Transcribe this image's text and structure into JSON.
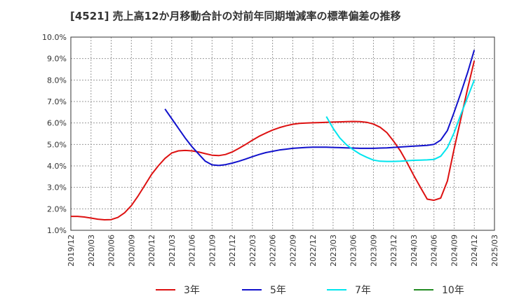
{
  "chart_data": {
    "type": "line",
    "title": "[4521]  売上高12か月移動合計の対前年同期増減率の標準偏差の推移",
    "xlabel": "",
    "ylabel": "",
    "ylim": [
      1.0,
      10.0
    ],
    "y_ticks": [
      "1.0%",
      "2.0%",
      "3.0%",
      "4.0%",
      "5.0%",
      "6.0%",
      "7.0%",
      "8.0%",
      "9.0%",
      "10.0%"
    ],
    "x_ticks": [
      "2019/12",
      "2020/03",
      "2020/06",
      "2020/09",
      "2020/12",
      "2021/03",
      "2021/06",
      "2021/09",
      "2021/12",
      "2022/03",
      "2022/06",
      "2022/09",
      "2022/12",
      "2023/03",
      "2023/06",
      "2023/09",
      "2023/12",
      "2024/03",
      "2024/06",
      "2024/09",
      "2024/12",
      "2025/03"
    ],
    "grid": true,
    "legend_position": "bottom",
    "series": [
      {
        "name": "3年",
        "color": "#dd1111",
        "points": [
          [
            "2019-12",
            1.65
          ],
          [
            "2020-01",
            1.65
          ],
          [
            "2020-02",
            1.62
          ],
          [
            "2020-03",
            1.57
          ],
          [
            "2020-04",
            1.52
          ],
          [
            "2020-05",
            1.49
          ],
          [
            "2020-06",
            1.5
          ],
          [
            "2020-07",
            1.6
          ],
          [
            "2020-08",
            1.82
          ],
          [
            "2020-09",
            2.15
          ],
          [
            "2020-10",
            2.6
          ],
          [
            "2020-11",
            3.1
          ],
          [
            "2020-12",
            3.6
          ],
          [
            "2021-01",
            4.0
          ],
          [
            "2021-02",
            4.35
          ],
          [
            "2021-03",
            4.6
          ],
          [
            "2021-04",
            4.7
          ],
          [
            "2021-05",
            4.72
          ],
          [
            "2021-06",
            4.7
          ],
          [
            "2021-07",
            4.65
          ],
          [
            "2021-08",
            4.57
          ],
          [
            "2021-09",
            4.5
          ],
          [
            "2021-10",
            4.48
          ],
          [
            "2021-11",
            4.53
          ],
          [
            "2021-12",
            4.65
          ],
          [
            "2022-01",
            4.82
          ],
          [
            "2022-02",
            5.0
          ],
          [
            "2022-03",
            5.2
          ],
          [
            "2022-04",
            5.38
          ],
          [
            "2022-05",
            5.53
          ],
          [
            "2022-06",
            5.67
          ],
          [
            "2022-07",
            5.78
          ],
          [
            "2022-08",
            5.87
          ],
          [
            "2022-09",
            5.94
          ],
          [
            "2022-10",
            5.98
          ],
          [
            "2022-11",
            6.0
          ],
          [
            "2022-12",
            6.01
          ],
          [
            "2023-01",
            6.02
          ],
          [
            "2023-02",
            6.03
          ],
          [
            "2023-03",
            6.04
          ],
          [
            "2023-04",
            6.05
          ],
          [
            "2023-05",
            6.06
          ],
          [
            "2023-06",
            6.07
          ],
          [
            "2023-07",
            6.06
          ],
          [
            "2023-08",
            6.03
          ],
          [
            "2023-09",
            5.95
          ],
          [
            "2023-10",
            5.8
          ],
          [
            "2023-11",
            5.55
          ],
          [
            "2023-12",
            5.15
          ],
          [
            "2024-01",
            4.7
          ],
          [
            "2024-02",
            4.15
          ],
          [
            "2024-03",
            3.55
          ],
          [
            "2024-04",
            3.0
          ],
          [
            "2024-05",
            2.45
          ],
          [
            "2024-06",
            2.4
          ],
          [
            "2024-07",
            2.5
          ],
          [
            "2024-08",
            3.3
          ],
          [
            "2024-09",
            4.8
          ],
          [
            "2024-10",
            6.2
          ],
          [
            "2024-11",
            7.6
          ],
          [
            "2024-12",
            8.9
          ]
        ]
      },
      {
        "name": "5年",
        "color": "#1111cc",
        "points": [
          [
            "2021-02",
            6.65
          ],
          [
            "2021-03",
            6.2
          ],
          [
            "2021-04",
            5.75
          ],
          [
            "2021-05",
            5.3
          ],
          [
            "2021-06",
            4.9
          ],
          [
            "2021-07",
            4.55
          ],
          [
            "2021-08",
            4.22
          ],
          [
            "2021-09",
            4.05
          ],
          [
            "2021-10",
            4.02
          ],
          [
            "2021-11",
            4.06
          ],
          [
            "2021-12",
            4.13
          ],
          [
            "2022-01",
            4.22
          ],
          [
            "2022-02",
            4.32
          ],
          [
            "2022-03",
            4.43
          ],
          [
            "2022-04",
            4.53
          ],
          [
            "2022-05",
            4.62
          ],
          [
            "2022-06",
            4.68
          ],
          [
            "2022-07",
            4.74
          ],
          [
            "2022-08",
            4.78
          ],
          [
            "2022-09",
            4.82
          ],
          [
            "2022-10",
            4.84
          ],
          [
            "2022-11",
            4.86
          ],
          [
            "2022-12",
            4.87
          ],
          [
            "2023-01",
            4.87
          ],
          [
            "2023-02",
            4.87
          ],
          [
            "2023-03",
            4.86
          ],
          [
            "2023-04",
            4.85
          ],
          [
            "2023-05",
            4.84
          ],
          [
            "2023-06",
            4.83
          ],
          [
            "2023-07",
            4.82
          ],
          [
            "2023-08",
            4.82
          ],
          [
            "2023-09",
            4.82
          ],
          [
            "2023-10",
            4.83
          ],
          [
            "2023-11",
            4.84
          ],
          [
            "2023-12",
            4.86
          ],
          [
            "2024-01",
            4.88
          ],
          [
            "2024-02",
            4.9
          ],
          [
            "2024-03",
            4.92
          ],
          [
            "2024-04",
            4.94
          ],
          [
            "2024-05",
            4.96
          ],
          [
            "2024-06",
            5.0
          ],
          [
            "2024-07",
            5.2
          ],
          [
            "2024-08",
            5.65
          ],
          [
            "2024-09",
            6.5
          ],
          [
            "2024-10",
            7.4
          ],
          [
            "2024-11",
            8.35
          ],
          [
            "2024-12",
            9.4
          ]
        ]
      },
      {
        "name": "7年",
        "color": "#00e5ee",
        "points": [
          [
            "2023-02",
            6.3
          ],
          [
            "2023-03",
            5.75
          ],
          [
            "2023-04",
            5.3
          ],
          [
            "2023-05",
            4.98
          ],
          [
            "2023-06",
            4.75
          ],
          [
            "2023-07",
            4.55
          ],
          [
            "2023-08",
            4.4
          ],
          [
            "2023-09",
            4.27
          ],
          [
            "2023-10",
            4.22
          ],
          [
            "2023-11",
            4.21
          ],
          [
            "2023-12",
            4.21
          ],
          [
            "2024-01",
            4.22
          ],
          [
            "2024-02",
            4.24
          ],
          [
            "2024-03",
            4.26
          ],
          [
            "2024-04",
            4.27
          ],
          [
            "2024-05",
            4.28
          ],
          [
            "2024-06",
            4.3
          ],
          [
            "2024-07",
            4.45
          ],
          [
            "2024-08",
            4.85
          ],
          [
            "2024-09",
            5.55
          ],
          [
            "2024-10",
            6.4
          ],
          [
            "2024-11",
            7.2
          ],
          [
            "2024-12",
            8.0
          ]
        ]
      },
      {
        "name": "10年",
        "color": "#228b22",
        "points": []
      }
    ]
  }
}
